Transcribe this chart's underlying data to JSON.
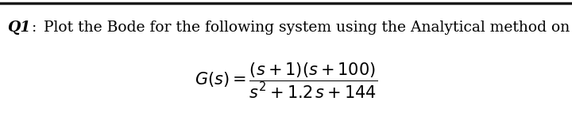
{
  "top_line_color": "#1a1a1a",
  "background_color": "#ffffff",
  "question_label": "Q1",
  "question_colon": ":",
  "question_text": " Plot the Bode for the following system using the Analytical method on semi-log paper.",
  "tf_math": "$G(s) = \\dfrac{(s + 1)(s + 100)}{s^2 + 1.2\\, s + 144}$",
  "label_fontsize": 13.5,
  "text_fontsize": 13.5,
  "math_fontsize": 15,
  "fig_width": 7.2,
  "fig_height": 1.47,
  "dpi": 100
}
